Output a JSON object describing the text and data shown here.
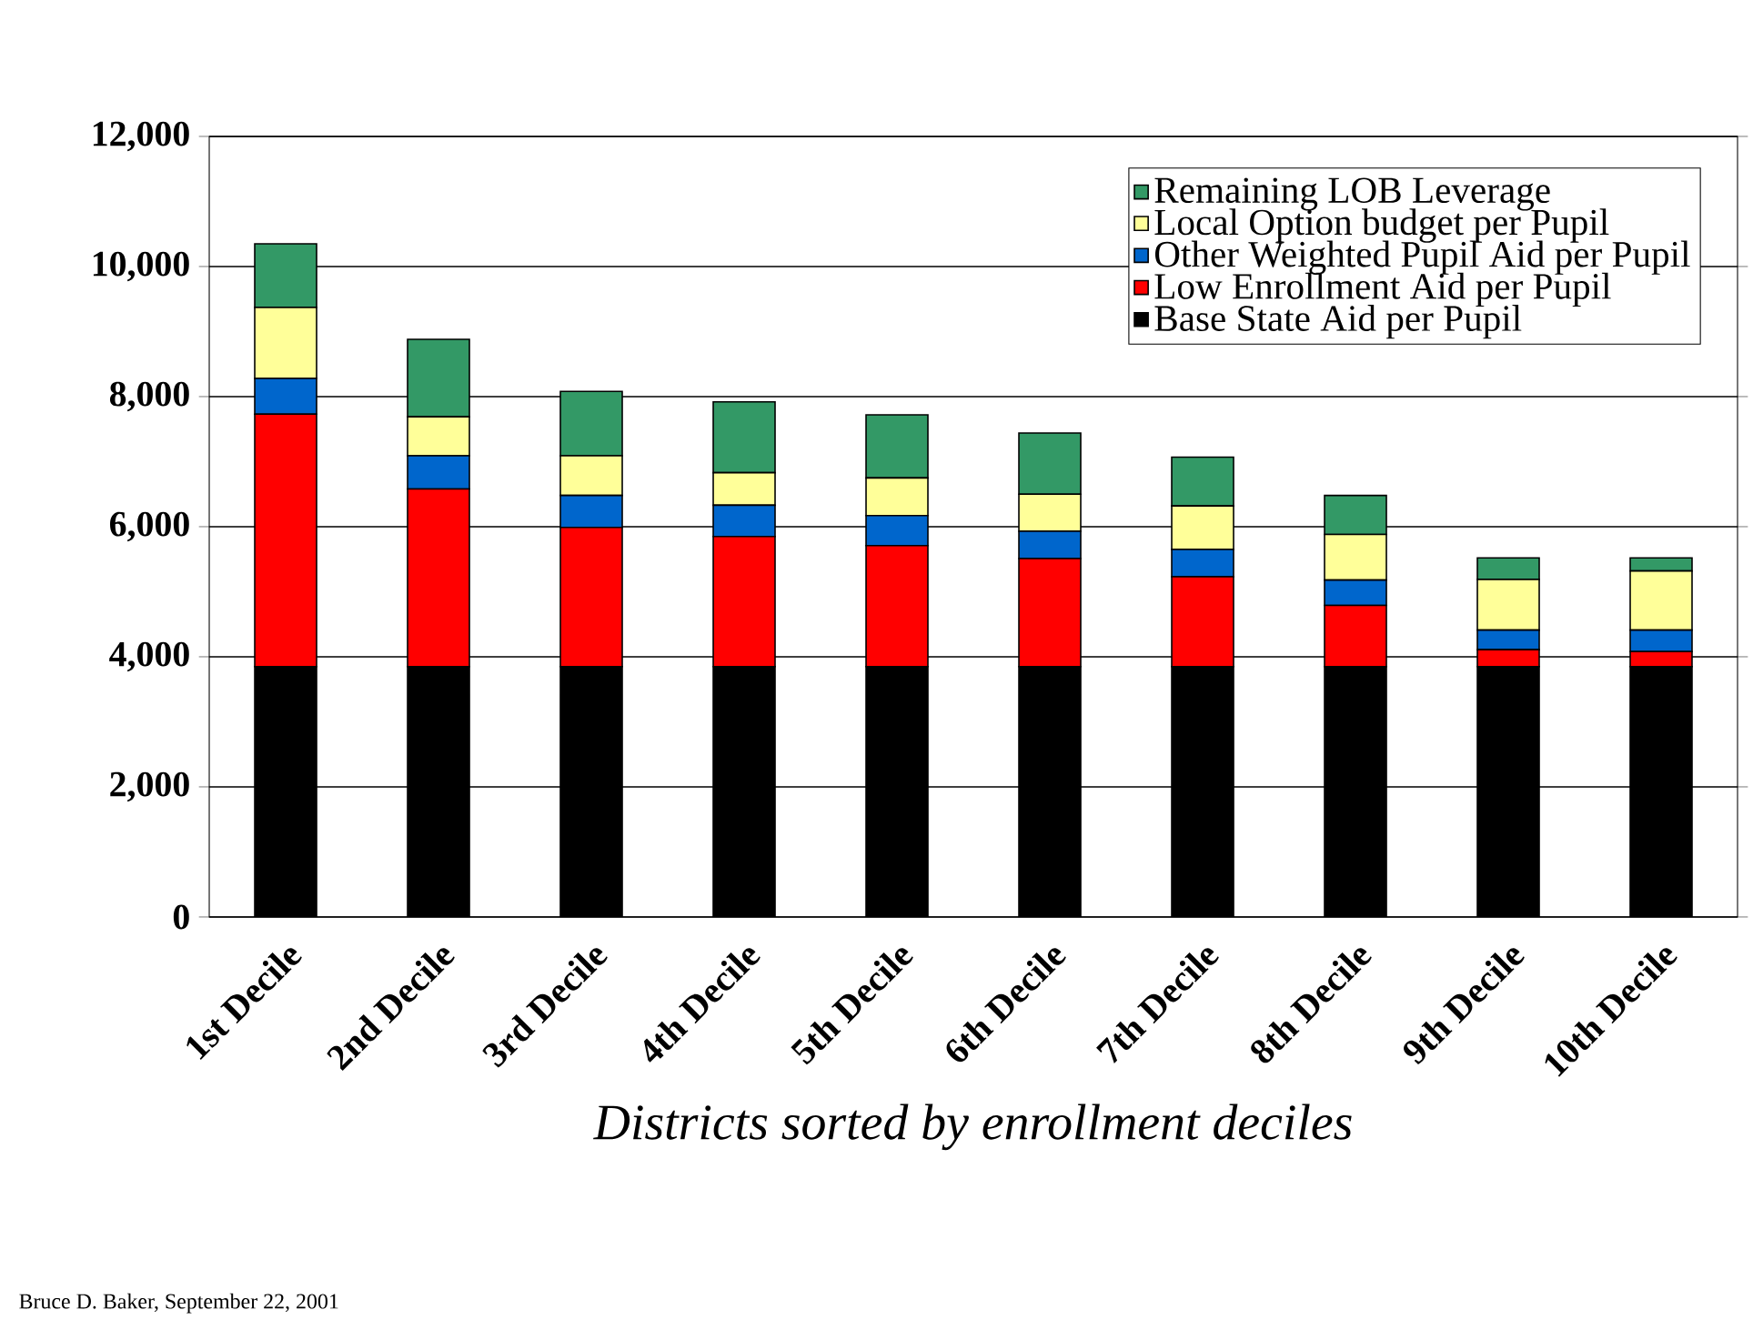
{
  "chart_data": {
    "type": "bar",
    "stacked": true,
    "xlabel": "Districts sorted by enrollment deciles",
    "categories": [
      "1st Decile",
      "2nd Decile",
      "3rd Decile",
      "4th Decile",
      "5th Decile",
      "6th Decile",
      "7th Decile",
      "8th Decile",
      "9th Decile",
      "10th Decile"
    ],
    "series": [
      {
        "name": "Base State Aid per Pupil",
        "color": "#000000",
        "values": [
          3850,
          3850,
          3850,
          3850,
          3850,
          3850,
          3850,
          3850,
          3850,
          3850
        ]
      },
      {
        "name": "Low Enrollment Aid per Pupil",
        "color": "#ff0000",
        "values": [
          3880,
          2730,
          2140,
          2000,
          1860,
          1660,
          1380,
          940,
          260,
          230
        ]
      },
      {
        "name": "Other Weighted Pupil Aid per Pupil",
        "color": "#0066cc",
        "values": [
          550,
          510,
          490,
          480,
          460,
          420,
          420,
          390,
          300,
          330
        ]
      },
      {
        "name": "Local Option budget per Pupil",
        "color": "#ffff99",
        "values": [
          1090,
          600,
          610,
          500,
          580,
          570,
          670,
          700,
          780,
          910
        ]
      },
      {
        "name": "Remaining LOB Leverage",
        "color": "#339966",
        "values": [
          980,
          1190,
          990,
          1090,
          970,
          940,
          750,
          600,
          330,
          200
        ]
      }
    ],
    "ylim": [
      0,
      12000
    ],
    "yticks": [
      0,
      {
        "value": 2000,
        "label": "2,000"
      },
      {
        "value": 4000,
        "label": "4,000"
      },
      {
        "value": 6000,
        "label": "6,000"
      },
      {
        "value": 8000,
        "label": "8,000"
      },
      {
        "value": 10000,
        "label": "10,000"
      },
      {
        "value": 12000,
        "label": "12,000"
      }
    ],
    "grid": "y",
    "legend": "top right",
    "annotations": [
      "Bruce D. Baker, September 22, 2001"
    ]
  }
}
